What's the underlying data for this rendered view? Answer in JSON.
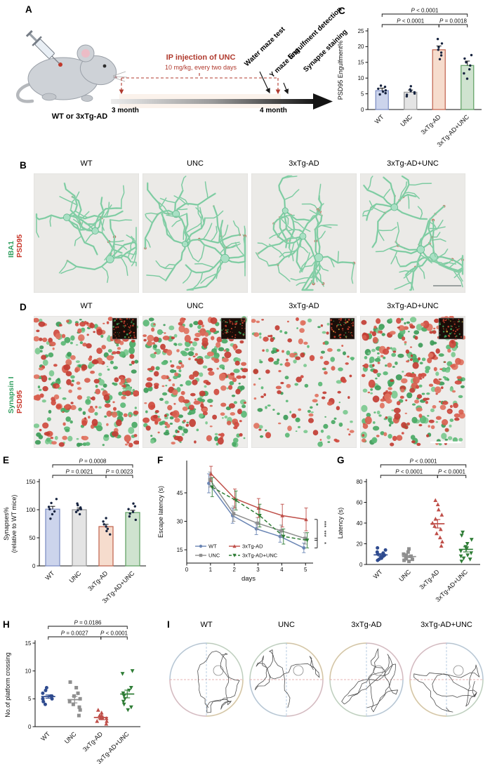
{
  "figure": {
    "background": "#ffffff"
  },
  "panels": {
    "A": {
      "label": "A",
      "mouse_label": "WT or 3xTg-AD",
      "injection_line1": "IP injection of UNC",
      "injection_line2": "10 mg/kg, every two days",
      "timeline_start": "3 month",
      "timeline_end": "4 month",
      "tests": [
        "Water maze test",
        "Y maze test",
        "Engulfment detection",
        "Synapse staining"
      ],
      "accent_red": "#b03a2e"
    },
    "B": {
      "label": "B",
      "image_titles": [
        "WT",
        "UNC",
        "3xTg-AD",
        "3xTg-AD+UNC"
      ],
      "stain_green": "IBA1",
      "stain_red": "PSD95",
      "green_color": "#2e9e5e",
      "red_color": "#c9382c"
    },
    "C": {
      "label": "C"
    },
    "D": {
      "label": "D",
      "image_titles": [
        "WT",
        "UNC",
        "3xTg-AD",
        "3xTg-AD+UNC"
      ],
      "stain_green": "Synapsin I",
      "stain_red": "PSD95",
      "green_color": "#2e9e5e",
      "red_color": "#c9382c"
    },
    "E": {
      "label": "E"
    },
    "F": {
      "label": "F"
    },
    "G": {
      "label": "G"
    },
    "H": {
      "label": "H"
    },
    "I": {
      "label": "I",
      "titles": [
        "WT",
        "UNC",
        "3xTg-AD",
        "3xTg-AD+UNC"
      ]
    }
  },
  "chart_data": [
    {
      "id": "C",
      "type": "bar",
      "ylabel": "PSD95 Engulfment%",
      "categories": [
        "WT",
        "UNC",
        "3xTg-AD",
        "3xTg-AD+UNC"
      ],
      "values": [
        6,
        5.5,
        19,
        14
      ],
      "errors": [
        0.8,
        0.7,
        1.2,
        1.4
      ],
      "points": [
        [
          4.8,
          5.2,
          5.7,
          6.1,
          6.6,
          7.2,
          7.6
        ],
        [
          4.2,
          4.7,
          5.1,
          5.5,
          5.9,
          6.4,
          7.4
        ],
        [
          16,
          17.2,
          18.1,
          19,
          19.8,
          21,
          22.4
        ],
        [
          9.8,
          11.5,
          12.8,
          14,
          15,
          16.2,
          17.3
        ]
      ],
      "ylim": [
        0,
        25
      ],
      "yticks": [
        0,
        5,
        10,
        15,
        20,
        25
      ],
      "bar_fills": [
        "#ccd4ec",
        "#e4e4e4",
        "#f6dccd",
        "#cfe3cf"
      ],
      "bar_strokes": [
        "#8191c6",
        "#9b9b9b",
        "#c46a55",
        "#64a368"
      ],
      "dot_color": "#16233f",
      "seed": 7,
      "sig": [
        {
          "from": 0,
          "to": 3,
          "label": "P < 0.0001",
          "row": 1
        },
        {
          "from": 0,
          "to": 2,
          "label": "P < 0.0001",
          "row": 0
        },
        {
          "from": 2,
          "to": 3,
          "label": "P = 0.0018",
          "row": 0
        }
      ]
    },
    {
      "id": "E",
      "type": "bar",
      "ylabel": [
        "Synapses%",
        "(relative to WT mice)"
      ],
      "categories": [
        "WT",
        "UNC",
        "3xTg-AD",
        "3xTg-AD+UNC"
      ],
      "values": [
        101,
        100,
        70,
        95
      ],
      "errors": [
        5,
        3,
        4,
        4
      ],
      "points": [
        [
          84,
          92,
          97,
          101,
          105,
          112,
          119
        ],
        [
          92,
          96,
          99,
          101,
          104,
          108,
          111
        ],
        [
          56,
          62,
          66,
          70,
          74,
          79,
          85
        ],
        [
          82,
          88,
          93,
          96,
          101,
          106,
          111
        ]
      ],
      "ylim": [
        0,
        150
      ],
      "yticks": [
        0,
        50,
        100,
        150
      ],
      "bar_fills": [
        "#ccd4ec",
        "#e4e4e4",
        "#f6dccd",
        "#cfe3cf"
      ],
      "bar_strokes": [
        "#8191c6",
        "#9b9b9b",
        "#c46a55",
        "#64a368"
      ],
      "dot_color": "#16233f",
      "seed": 13,
      "sig": [
        {
          "from": 0,
          "to": 3,
          "label": "P = 0.0008",
          "row": 1
        },
        {
          "from": 0,
          "to": 2,
          "label": "P = 0.0021",
          "row": 0
        },
        {
          "from": 2,
          "to": 3,
          "label": "P = 0.0023",
          "row": 0
        }
      ]
    },
    {
      "id": "F",
      "type": "line",
      "ylabel": "Escape latency (s)",
      "xlabel": "days",
      "x": [
        1,
        2,
        3,
        4,
        5
      ],
      "xlim": [
        0,
        5.2
      ],
      "xticks": [
        0,
        1,
        2,
        3,
        4,
        5
      ],
      "ylim": [
        8,
        62
      ],
      "yticks": [
        15,
        30,
        45
      ],
      "series": [
        {
          "name": "WT",
          "color": "#6a85b4",
          "dash": false,
          "marker": "circle",
          "values": [
            50,
            33,
            26,
            22,
            16
          ],
          "errors": [
            5,
            4,
            3,
            3,
            2.5
          ]
        },
        {
          "name": "UNC",
          "color": "#8f8f8f",
          "dash": false,
          "marker": "square",
          "values": [
            52,
            34,
            29,
            25,
            21
          ],
          "errors": [
            4,
            4,
            3,
            3,
            3
          ]
        },
        {
          "name": "3xTg-AD",
          "color": "#bf4f49",
          "dash": false,
          "marker": "triangle",
          "values": [
            55,
            42,
            37,
            33,
            31
          ],
          "errors": [
            4,
            5,
            5,
            6,
            6
          ]
        },
        {
          "name": "3xTg-AD+UNC",
          "color": "#2f7d36",
          "dash": true,
          "marker": "triangle-down",
          "values": [
            48,
            41,
            33,
            22,
            20
          ],
          "errors": [
            5,
            5,
            6,
            4,
            4
          ]
        }
      ],
      "sig_marks": [
        "***",
        "***",
        "*"
      ]
    },
    {
      "id": "G",
      "type": "scatter",
      "ylabel": "Latency (s)",
      "categories": [
        "WT",
        "UNC",
        "3xTg-AD",
        "3xTg-AD+UNC"
      ],
      "ylim": [
        0,
        80
      ],
      "yticks": [
        0,
        20,
        40,
        60,
        80
      ],
      "colors": [
        "#2f4b8f",
        "#8f8f8f",
        "#bf4f49",
        "#2f7d36"
      ],
      "markers": [
        "circle",
        "square",
        "triangle",
        "triangle-down"
      ],
      "points": [
        [
          4,
          5,
          6,
          7,
          8,
          9,
          10,
          11,
          12,
          14,
          16
        ],
        [
          3,
          4,
          5,
          5.5,
          6,
          7,
          8,
          9,
          10,
          12,
          15
        ],
        [
          18,
          22,
          26,
          30,
          34,
          37,
          40,
          44,
          48,
          53,
          58,
          62
        ],
        [
          3,
          5,
          6,
          8,
          9,
          11,
          13,
          15,
          17,
          20,
          24,
          28,
          31
        ]
      ],
      "seed": 23,
      "sig": [
        {
          "from": 0,
          "to": 3,
          "label": "P < 0.0001",
          "row": 1
        },
        {
          "from": 0,
          "to": 2,
          "label": "P < 0.0001",
          "row": 0
        },
        {
          "from": 2,
          "to": 3,
          "label": "P < 0.0001",
          "row": 0
        }
      ]
    },
    {
      "id": "H",
      "type": "scatter",
      "ylabel": "No.of platform crossing",
      "categories": [
        "WT",
        "UNC",
        "3xTg-AD",
        "3xTg-AD+UNC"
      ],
      "ylim": [
        0,
        15
      ],
      "yticks": [
        0,
        5,
        10,
        15
      ],
      "colors": [
        "#2f4b8f",
        "#8f8f8f",
        "#bf4f49",
        "#2f7d36"
      ],
      "markers": [
        "circle",
        "square",
        "triangle",
        "triangle-down"
      ],
      "points": [
        [
          4,
          4.5,
          5,
          5,
          5,
          5.5,
          5.5,
          6,
          6.5,
          7
        ],
        [
          2,
          3,
          3.5,
          4,
          4.5,
          5,
          5.5,
          6,
          7,
          8
        ],
        [
          0.5,
          1,
          1,
          1.5,
          1.5,
          1.5,
          2,
          2,
          2.5,
          3
        ],
        [
          3,
          3.5,
          4,
          4.5,
          5,
          5.5,
          6,
          6.5,
          7,
          9.5,
          10
        ]
      ],
      "seed": 31,
      "sig": [
        {
          "from": 0,
          "to": 3,
          "label": "P = 0.0186",
          "row": 1
        },
        {
          "from": 0,
          "to": 2,
          "label": "P = 0.0027",
          "row": 0
        },
        {
          "from": 2,
          "to": 3,
          "label": "P < 0.0001",
          "row": 0
        }
      ]
    }
  ]
}
